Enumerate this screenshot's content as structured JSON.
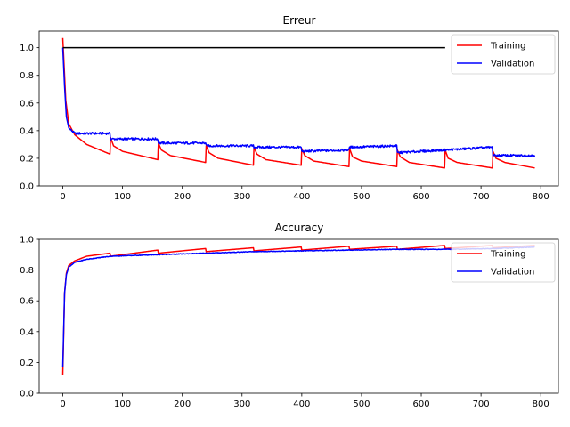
{
  "chart_data": [
    {
      "type": "line",
      "title": "Erreur",
      "xlabel": "",
      "ylabel": "",
      "xlim": [
        -39.5,
        829.5
      ],
      "ylim": [
        0,
        1.12
      ],
      "xticks": [
        0,
        100,
        200,
        300,
        400,
        500,
        600,
        700,
        800
      ],
      "yticks": [
        0.0,
        0.2,
        0.4,
        0.6,
        0.8,
        1.0
      ],
      "legend_position": "top-right",
      "reference_line": {
        "y": 1.0,
        "x_range": [
          0,
          640
        ],
        "color": "#000000"
      },
      "series": [
        {
          "name": "Training",
          "color": "#ff0000",
          "cycle_length": 80,
          "cycle_shape": "decay",
          "x": [
            0,
            5,
            10,
            20,
            40,
            79,
            80,
            85,
            100,
            159,
            160,
            165,
            180,
            239,
            240,
            245,
            260,
            319,
            320,
            325,
            340,
            399,
            400,
            405,
            420,
            479,
            480,
            485,
            500,
            559,
            560,
            565,
            580,
            639,
            640,
            645,
            660,
            719,
            720,
            725,
            740,
            790
          ],
          "values": [
            1.07,
            0.62,
            0.45,
            0.37,
            0.3,
            0.23,
            0.35,
            0.29,
            0.25,
            0.19,
            0.31,
            0.26,
            0.22,
            0.17,
            0.29,
            0.24,
            0.2,
            0.15,
            0.28,
            0.23,
            0.19,
            0.15,
            0.27,
            0.22,
            0.18,
            0.14,
            0.27,
            0.21,
            0.18,
            0.14,
            0.26,
            0.21,
            0.17,
            0.13,
            0.26,
            0.2,
            0.17,
            0.13,
            0.25,
            0.2,
            0.17,
            0.13
          ]
        },
        {
          "name": "Validation",
          "color": "#0000ff",
          "cycle_length": 80,
          "cycle_shape": "flat",
          "x": [
            0,
            3,
            6,
            10,
            20,
            79,
            80,
            159,
            160,
            239,
            240,
            319,
            320,
            399,
            400,
            479,
            480,
            559,
            560,
            639,
            640,
            719,
            720,
            790
          ],
          "values": [
            1.0,
            0.72,
            0.5,
            0.42,
            0.38,
            0.38,
            0.34,
            0.34,
            0.31,
            0.31,
            0.29,
            0.29,
            0.28,
            0.28,
            0.25,
            0.26,
            0.28,
            0.29,
            0.24,
            0.26,
            0.26,
            0.28,
            0.22,
            0.22
          ]
        }
      ]
    },
    {
      "type": "line",
      "title": "Accuracy",
      "xlabel": "",
      "ylabel": "",
      "xlim": [
        -39.5,
        829.5
      ],
      "ylim": [
        0,
        1.0
      ],
      "xticks": [
        0,
        100,
        200,
        300,
        400,
        500,
        600,
        700,
        800
      ],
      "yticks": [
        0.0,
        0.2,
        0.4,
        0.6,
        0.8,
        1.0
      ],
      "legend_position": "top-right",
      "series": [
        {
          "name": "Training",
          "color": "#ff0000",
          "cycle_length": 80,
          "cycle_shape": "rise",
          "x": [
            0,
            3,
            6,
            10,
            20,
            40,
            79,
            80,
            159,
            160,
            239,
            240,
            319,
            320,
            399,
            400,
            479,
            480,
            559,
            560,
            639,
            640,
            719,
            720,
            790
          ],
          "values": [
            0.12,
            0.65,
            0.78,
            0.83,
            0.86,
            0.89,
            0.91,
            0.89,
            0.93,
            0.91,
            0.94,
            0.92,
            0.945,
            0.925,
            0.95,
            0.93,
            0.955,
            0.935,
            0.955,
            0.935,
            0.96,
            0.94,
            0.96,
            0.945,
            0.96
          ]
        },
        {
          "name": "Validation",
          "color": "#0000ff",
          "cycle_length": 80,
          "cycle_shape": "flat",
          "x": [
            0,
            3,
            6,
            10,
            20,
            40,
            80,
            160,
            240,
            320,
            400,
            480,
            560,
            640,
            720,
            790
          ],
          "values": [
            0.17,
            0.65,
            0.77,
            0.82,
            0.85,
            0.87,
            0.89,
            0.9,
            0.91,
            0.92,
            0.925,
            0.93,
            0.935,
            0.935,
            0.94,
            0.95
          ]
        }
      ]
    }
  ]
}
